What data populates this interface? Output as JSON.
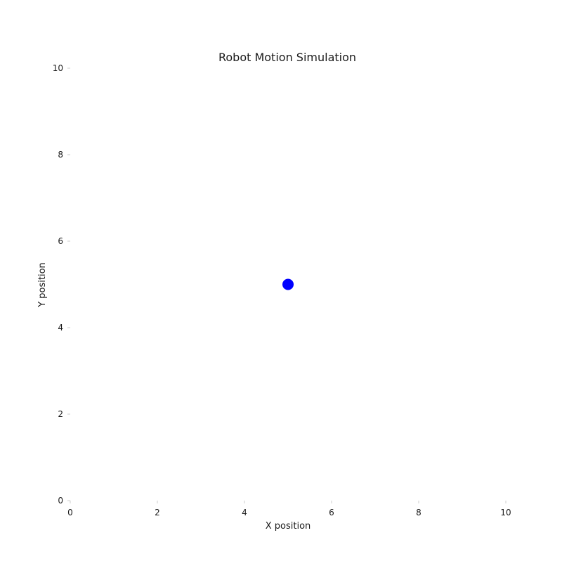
{
  "colors": {
    "point": "#0000ff",
    "background": "#ffffff",
    "text": "#1a1a1a"
  },
  "chart_data": {
    "type": "scatter",
    "title": "Robot Motion Simulation",
    "xlabel": "X position",
    "ylabel": "Y position",
    "xlim": [
      0,
      10
    ],
    "ylim": [
      0,
      10
    ],
    "x_ticks": [
      0,
      2,
      4,
      6,
      8,
      10
    ],
    "y_ticks": [
      0,
      2,
      4,
      6,
      8,
      10
    ],
    "grid": false,
    "series": [
      {
        "points": [
          {
            "x": 5,
            "y": 5
          }
        ]
      }
    ]
  }
}
